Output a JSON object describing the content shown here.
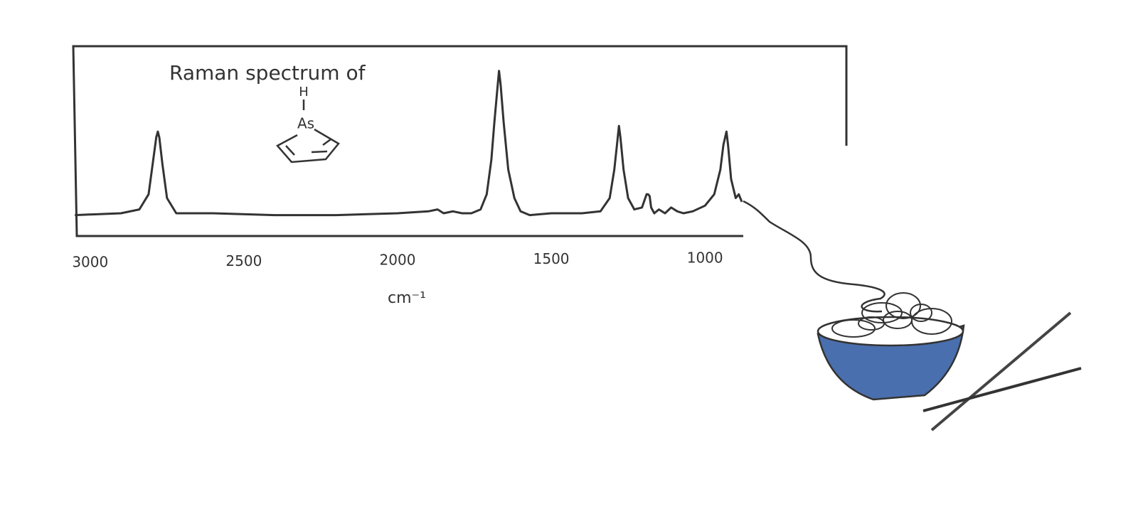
{
  "chart_data": {
    "type": "line",
    "title": "Raman spectrum of",
    "molecule_labels": [
      "H",
      "As"
    ],
    "x_label": "cm⁻¹",
    "x": [
      3050,
      2900,
      2840,
      2810,
      2795,
      2785,
      2780,
      2775,
      2765,
      2750,
      2720,
      2600,
      2400,
      2200,
      2000,
      1900,
      1870,
      1850,
      1820,
      1790,
      1760,
      1730,
      1710,
      1695,
      1685,
      1675,
      1670,
      1665,
      1655,
      1640,
      1620,
      1600,
      1570,
      1500,
      1400,
      1340,
      1310,
      1295,
      1285,
      1280,
      1275,
      1265,
      1250,
      1230,
      1205,
      1190,
      1185,
      1180,
      1175,
      1165,
      1150,
      1130,
      1110,
      1090,
      1070,
      1040,
      1000,
      970,
      950,
      940,
      930,
      925,
      915,
      900,
      890,
      880
    ],
    "values": [
      11,
      12,
      14,
      22,
      40,
      52,
      55,
      52,
      38,
      20,
      12,
      12,
      11,
      11,
      12,
      13,
      14,
      12,
      13,
      12,
      12,
      14,
      22,
      40,
      60,
      78,
      87,
      80,
      60,
      35,
      20,
      13,
      11,
      12,
      12,
      13,
      20,
      35,
      50,
      58,
      52,
      35,
      20,
      14,
      15,
      22,
      22,
      21,
      15,
      12,
      14,
      12,
      15,
      13,
      12,
      13,
      16,
      22,
      35,
      48,
      55,
      48,
      30,
      20,
      22,
      18
    ],
    "color": "#333333",
    "xlim": [
      3055,
      540
    ],
    "ylim": [
      0,
      100
    ],
    "xticks": [
      3000,
      2500,
      2000,
      1500,
      1000
    ]
  }
}
